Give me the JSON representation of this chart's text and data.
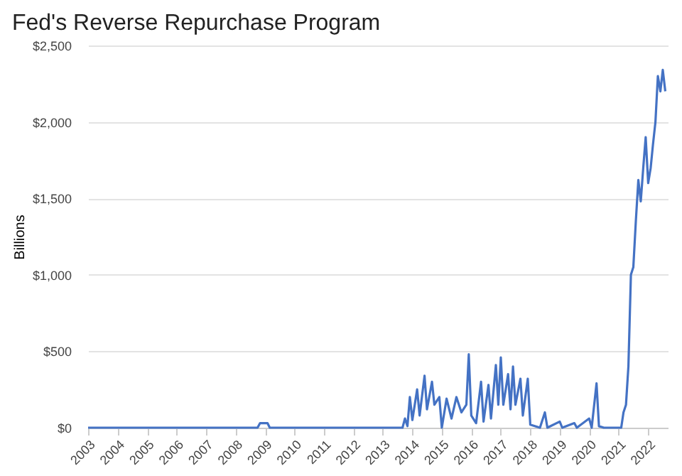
{
  "chart_data": {
    "type": "line",
    "title": "Fed's Reverse Repurchase Program",
    "ylabel": "Billions",
    "x": [
      "2003-01",
      "2008-10",
      "2008-11",
      "2009-02",
      "2009-03",
      "2013-09",
      "2013-10",
      "2013-11",
      "2013-12",
      "2014-01",
      "2014-03",
      "2014-04",
      "2014-06",
      "2014-07",
      "2014-09",
      "2014-10",
      "2014-12",
      "2015-01",
      "2015-03",
      "2015-05",
      "2015-07",
      "2015-09",
      "2015-11",
      "2015-12",
      "2016-01",
      "2016-03",
      "2016-05",
      "2016-06",
      "2016-08",
      "2016-09",
      "2016-11",
      "2016-12",
      "2017-01",
      "2017-02",
      "2017-04",
      "2017-05",
      "2017-06",
      "2017-07",
      "2017-09",
      "2017-10",
      "2017-12",
      "2018-01",
      "2018-05",
      "2018-07",
      "2018-08",
      "2019-01",
      "2019-02",
      "2019-07",
      "2019-08",
      "2020-01",
      "2020-02",
      "2020-04",
      "2020-05",
      "2020-07",
      "2021-02",
      "2021-03",
      "2021-04",
      "2021-05",
      "2021-06",
      "2021-07",
      "2021-08",
      "2021-09",
      "2021-10",
      "2021-11",
      "2021-12",
      "2022-01",
      "2022-02",
      "2022-03",
      "2022-04",
      "2022-05",
      "2022-06",
      "2022-07",
      "2022-08"
    ],
    "series": [
      {
        "color": "#4472c4",
        "values": [
          0,
          0,
          30,
          30,
          0,
          0,
          60,
          10,
          200,
          50,
          250,
          80,
          340,
          120,
          300,
          150,
          200,
          0,
          190,
          60,
          200,
          100,
          150,
          480,
          80,
          30,
          300,
          40,
          280,
          60,
          410,
          150,
          460,
          150,
          350,
          120,
          400,
          150,
          320,
          80,
          320,
          20,
          0,
          100,
          0,
          40,
          0,
          30,
          0,
          60,
          0,
          290,
          10,
          0,
          0,
          100,
          150,
          400,
          1000,
          1050,
          1350,
          1620,
          1480,
          1700,
          1900,
          1600,
          1700,
          1850,
          2000,
          2300,
          2200,
          2340,
          2200
        ]
      }
    ],
    "xlim": [
      "2003-01-01",
      "2022-09-01"
    ],
    "xticks": [
      "2003",
      "2004",
      "2005",
      "2006",
      "2007",
      "2008",
      "2009",
      "2010",
      "2011",
      "2012",
      "2013",
      "2014",
      "2015",
      "2016",
      "2017",
      "2018",
      "2019",
      "2020",
      "2021",
      "2022"
    ],
    "ylim": [
      0,
      2500
    ],
    "yticks": [
      {
        "value": 0,
        "label": "$0"
      },
      {
        "value": 500,
        "label": "$500"
      },
      {
        "value": 1000,
        "label": "$1,000"
      },
      {
        "value": 1500,
        "label": "$1,500"
      },
      {
        "value": 2000,
        "label": "$2,000"
      },
      {
        "value": 2500,
        "label": "$2,500"
      }
    ],
    "grid": "y"
  }
}
